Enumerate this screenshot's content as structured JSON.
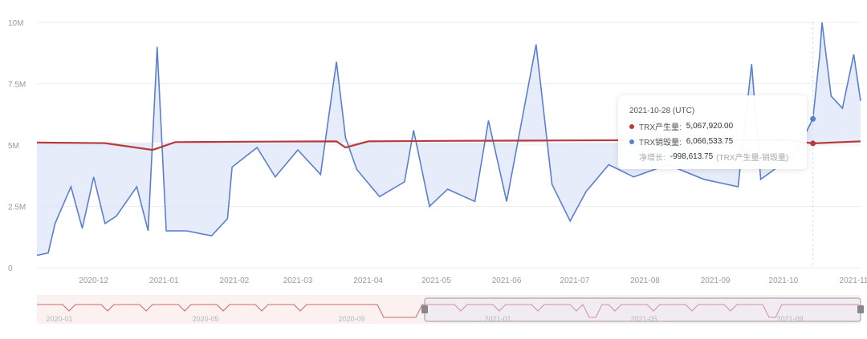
{
  "chart_data": {
    "type": "line",
    "title": "",
    "xlabel": "",
    "ylabel": "",
    "ylim": [
      0,
      10000000
    ],
    "y_ticks": [
      "0",
      "2.5M",
      "5M",
      "7.5M",
      "10M"
    ],
    "x_ticks": [
      "2020-12",
      "2021-01",
      "2021-02",
      "2021-03",
      "2021-04",
      "2021-05",
      "2021-06",
      "2021-07",
      "2021-08",
      "2021-09",
      "2021-10",
      "2021-11"
    ],
    "grid": true,
    "series": [
      {
        "name": "TRX产生量",
        "color": "#b83a3a",
        "points": [
          [
            "2020-11-20",
            5100000
          ],
          [
            "2020-12-20",
            5080000
          ],
          [
            "2021-01-10",
            4800000
          ],
          [
            "2021-01-20",
            5120000
          ],
          [
            "2021-03-01",
            5140000
          ],
          [
            "2021-04-01",
            5150000
          ],
          [
            "2021-04-05",
            4900000
          ],
          [
            "2021-04-15",
            5150000
          ],
          [
            "2021-05-15",
            5170000
          ],
          [
            "2021-06-15",
            5180000
          ],
          [
            "2021-07-15",
            5190000
          ],
          [
            "2021-08-15",
            5200000
          ],
          [
            "2021-09-15",
            5210000
          ],
          [
            "2021-10-15",
            5220000
          ],
          [
            "2021-10-28",
            5067920
          ],
          [
            "2021-11-18",
            5150000
          ]
        ]
      },
      {
        "name": "TRX销毁量",
        "color": "#5b7fcf",
        "points": [
          [
            "2020-11-20",
            500000
          ],
          [
            "2020-11-25",
            600000
          ],
          [
            "2020-11-28",
            1800000
          ],
          [
            "2020-12-05",
            3300000
          ],
          [
            "2020-12-10",
            1600000
          ],
          [
            "2020-12-15",
            3700000
          ],
          [
            "2020-12-20",
            1800000
          ],
          [
            "2020-12-25",
            2100000
          ],
          [
            "2021-01-03",
            3300000
          ],
          [
            "2021-01-08",
            1500000
          ],
          [
            "2021-01-12",
            9000000
          ],
          [
            "2021-01-16",
            1500000
          ],
          [
            "2021-01-25",
            1500000
          ],
          [
            "2021-02-05",
            1300000
          ],
          [
            "2021-02-12",
            2000000
          ],
          [
            "2021-02-14",
            4100000
          ],
          [
            "2021-02-25",
            4900000
          ],
          [
            "2021-03-05",
            3700000
          ],
          [
            "2021-03-15",
            4800000
          ],
          [
            "2021-03-25",
            3800000
          ],
          [
            "2021-04-01",
            8400000
          ],
          [
            "2021-04-05",
            5300000
          ],
          [
            "2021-04-10",
            4000000
          ],
          [
            "2021-04-20",
            2900000
          ],
          [
            "2021-05-01",
            3500000
          ],
          [
            "2021-05-05",
            5600000
          ],
          [
            "2021-05-12",
            2500000
          ],
          [
            "2021-05-20",
            3200000
          ],
          [
            "2021-06-01",
            2700000
          ],
          [
            "2021-06-07",
            6000000
          ],
          [
            "2021-06-15",
            2700000
          ],
          [
            "2021-06-28",
            9100000
          ],
          [
            "2021-07-05",
            3400000
          ],
          [
            "2021-07-13",
            1900000
          ],
          [
            "2021-07-20",
            3100000
          ],
          [
            "2021-07-30",
            4200000
          ],
          [
            "2021-08-10",
            3700000
          ],
          [
            "2021-08-25",
            4200000
          ],
          [
            "2021-09-10",
            3600000
          ],
          [
            "2021-09-25",
            3300000
          ],
          [
            "2021-10-01",
            8300000
          ],
          [
            "2021-10-05",
            3600000
          ],
          [
            "2021-10-20",
            4600000
          ],
          [
            "2021-10-28",
            6066533.75
          ],
          [
            "2021-10-31",
            8700000
          ],
          [
            "2021-11-01",
            10000000
          ],
          [
            "2021-11-05",
            7000000
          ],
          [
            "2021-11-10",
            6500000
          ],
          [
            "2021-11-15",
            8700000
          ],
          [
            "2021-11-18",
            6800000
          ]
        ]
      }
    ],
    "navigator_ticks": [
      "2020-01",
      "2020-05",
      "2020-09",
      "2021-01",
      "2021-05",
      "2021-09"
    ]
  },
  "tooltip": {
    "date": "2021-10-28 (UTC)",
    "rows": [
      {
        "label": "TRX产生量:",
        "value": "5,067,920.00",
        "color": "#b83a3a"
      },
      {
        "label": "TRX销毁量:",
        "value": "6,066,533.75",
        "color": "#5b7fcf"
      }
    ],
    "net_label": "净增长:",
    "net_value": "-998,613.75",
    "net_note": "(TRX产生量-销毁量)"
  }
}
